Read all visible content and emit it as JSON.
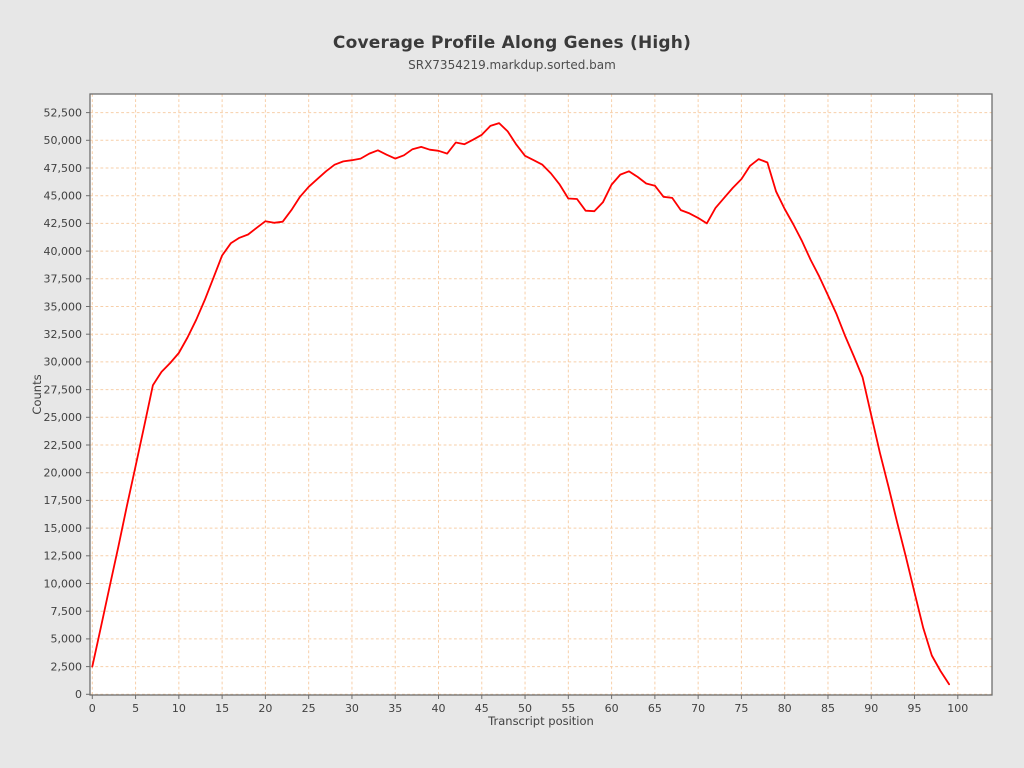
{
  "chart": {
    "title": "Coverage Profile Along Genes (High)",
    "subtitle": "SRX7354219.markdup.sorted.bam"
  },
  "chart_data": {
    "type": "line",
    "title": "Coverage Profile Along Genes (High)",
    "subtitle": "SRX7354219.markdup.sorted.bam",
    "xlabel": "Transcript position",
    "ylabel": "Counts",
    "legend": "none",
    "grid": "dashed",
    "x_axis": {
      "min": 0,
      "max": 100,
      "tick_step": 5
    },
    "y_axis": {
      "min": 0,
      "max": 52500,
      "tick_step": 2500
    },
    "positions": [
      0,
      1,
      2,
      3,
      4,
      5,
      6,
      7,
      8,
      9,
      10,
      11,
      12,
      13,
      14,
      15,
      16,
      17,
      18,
      19,
      20,
      21,
      22,
      23,
      24,
      25,
      26,
      27,
      28,
      29,
      30,
      31,
      32,
      33,
      34,
      35,
      36,
      37,
      38,
      39,
      40,
      41,
      42,
      43,
      44,
      45,
      46,
      47,
      48,
      49,
      50,
      51,
      52,
      53,
      54,
      55,
      56,
      57,
      58,
      59,
      60,
      61,
      62,
      63,
      64,
      65,
      66,
      67,
      68,
      69,
      70,
      71,
      72,
      73,
      74,
      75,
      76,
      77,
      78,
      79,
      80,
      81,
      82,
      83,
      84,
      85,
      86,
      87,
      88,
      89,
      90,
      91,
      92,
      93,
      94,
      95,
      96,
      97,
      98,
      99
    ],
    "series": [
      {
        "name": "SRX7354219.markdup.sorted.bam",
        "color": "#ff0000",
        "values": [
          2500,
          6100,
          9700,
          13300,
          17000,
          20600,
          24200,
          27900,
          29100,
          29900,
          30800,
          32200,
          33800,
          35600,
          37600,
          39600,
          40700,
          41200,
          41500,
          42100,
          42700,
          42550,
          42650,
          43700,
          44900,
          45800,
          46500,
          47200,
          47800,
          48100,
          48200,
          48350,
          48800,
          49100,
          48700,
          48350,
          48650,
          49200,
          49400,
          49150,
          49050,
          48800,
          49800,
          49650,
          50050,
          50500,
          51300,
          51550,
          50800,
          49600,
          48600,
          48200,
          47800,
          47000,
          46000,
          44750,
          44700,
          43650,
          43600,
          44400,
          46000,
          46900,
          47200,
          46700,
          46100,
          45900,
          44900,
          44800,
          43700,
          43400,
          43000,
          42500,
          43900,
          44800,
          45700,
          46500,
          47700,
          48300,
          48000,
          45400,
          43800,
          42400,
          40900,
          39200,
          37700,
          36000,
          34300,
          32300,
          30500,
          28600,
          25200,
          21800,
          18700,
          15500,
          12400,
          9200,
          6000,
          3500,
          2100,
          900
        ]
      }
    ],
    "colors": {
      "line": "#ff0000",
      "grid": "#f7cfa9",
      "plot_bg": "#ffffff",
      "panel_bg": "#e7e7e7",
      "border": "#6e6e6e",
      "tick": "#6e6e6e",
      "text": "#414141",
      "title": "#3a3a3a",
      "subtitle": "#4d4d4d"
    }
  }
}
